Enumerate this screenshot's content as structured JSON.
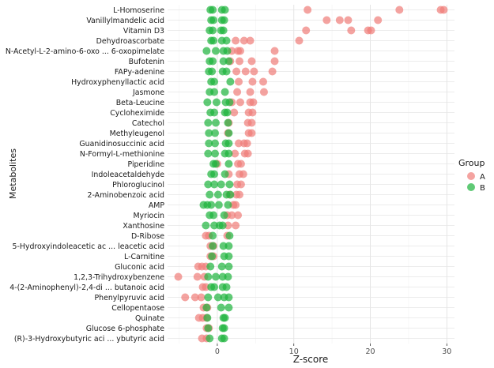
{
  "chart_data": {
    "type": "scatter",
    "title": "",
    "xlabel": "Z-score",
    "ylabel": "Metabolites",
    "xlim": [
      -6.5,
      31.0
    ],
    "x_ticks": [
      0,
      10,
      20,
      30
    ],
    "grid": true,
    "legend": {
      "title": "Group",
      "position": "right",
      "entries": [
        {
          "label": "A",
          "color": "#F07C78"
        },
        {
          "label": "B",
          "color": "#1DB43C"
        }
      ]
    },
    "metabolites": [
      {
        "name": "L-Homoserine",
        "A": [
          11.8,
          23.8,
          29.2,
          29.6
        ],
        "B": [
          -0.9,
          -0.6,
          0.6,
          1.0
        ]
      },
      {
        "name": "Vanillylmandelic acid",
        "A": [
          14.3,
          16.0,
          17.1,
          21.0
        ],
        "B": [
          -0.8,
          -0.5,
          0.6,
          0.9
        ]
      },
      {
        "name": "Vitamin D3",
        "A": [
          11.6,
          17.5,
          19.7,
          20.1
        ],
        "B": [
          -1.0,
          -0.6,
          0.5,
          0.8
        ]
      },
      {
        "name": "Dehydroascorbate",
        "A": [
          2.4,
          3.5,
          4.3,
          10.7
        ],
        "B": [
          -0.8,
          -0.5,
          0.6,
          1.2
        ]
      },
      {
        "name": "N-Acetyl-L-2-amino-6-oxo ... 6-oxopimelate",
        "A": [
          1.9,
          2.7,
          3.0,
          7.5
        ],
        "B": [
          -1.4,
          -0.2,
          0.8,
          1.3
        ]
      },
      {
        "name": "Bufotenin",
        "A": [
          1.7,
          2.9,
          4.5,
          7.5
        ],
        "B": [
          -1.0,
          -0.6,
          0.8,
          1.5
        ]
      },
      {
        "name": "FAPy-adenine",
        "A": [
          2.5,
          3.7,
          4.8,
          7.2
        ],
        "B": [
          -1.1,
          -0.7,
          0.7,
          1.2
        ]
      },
      {
        "name": "Hydroxyphenyllactic acid",
        "A": [
          2.8,
          4.6,
          6.0
        ],
        "B": [
          -0.8,
          -0.4,
          1.7
        ]
      },
      {
        "name": "Jasmone",
        "A": [
          2.6,
          4.3,
          6.1
        ],
        "B": [
          -1.0,
          -0.4,
          1.0
        ]
      },
      {
        "name": "Beta-Leucine",
        "A": [
          1.9,
          3.0,
          4.3,
          4.7
        ],
        "B": [
          -1.3,
          -0.1,
          1.1,
          1.6
        ]
      },
      {
        "name": "Cycloheximide",
        "A": [
          2.2,
          4.1,
          4.6
        ],
        "B": [
          -0.9,
          -0.4,
          1.0,
          1.3
        ]
      },
      {
        "name": "Catechol",
        "A": [
          1.5,
          4.0,
          4.5
        ],
        "B": [
          -1.2,
          -0.2,
          1.4
        ]
      },
      {
        "name": "Methyleugenol",
        "A": [
          1.4,
          4.1,
          4.5
        ],
        "B": [
          -1.1,
          -0.3,
          1.5
        ]
      },
      {
        "name": "Guanidinosuccinic acid",
        "A": [
          2.8,
          3.5,
          3.9
        ],
        "B": [
          -1.1,
          -0.3,
          1.1,
          1.5
        ]
      },
      {
        "name": "N-Formyl-L-methionine",
        "A": [
          2.3,
          3.6,
          4.0
        ],
        "B": [
          -1.2,
          -0.3,
          1.0,
          1.5
        ]
      },
      {
        "name": "Piperidine",
        "A": [
          0.0,
          2.7,
          3.1
        ],
        "B": [
          -0.5,
          -0.2,
          1.5
        ]
      },
      {
        "name": "Indoleacetaldehyde",
        "A": [
          1.5,
          2.9,
          3.4
        ],
        "B": [
          -0.8,
          -0.4,
          1.0
        ]
      },
      {
        "name": "Phloroglucinol",
        "A": [
          2.6,
          3.1
        ],
        "B": [
          -1.2,
          -0.4,
          0.5,
          1.6
        ]
      },
      {
        "name": "2-Aminobenzoic acid",
        "A": [
          1.6,
          2.5,
          2.9
        ],
        "B": [
          -1.0,
          0.1,
          1.2,
          1.7
        ]
      },
      {
        "name": "AMP",
        "A": [
          2.1,
          2.4
        ],
        "B": [
          -1.8,
          -1.3,
          -0.8,
          0.2,
          1.4
        ]
      },
      {
        "name": "Myriocin",
        "A": [
          1.3,
          1.9,
          2.7
        ],
        "B": [
          -1.0,
          -0.5,
          0.9
        ]
      },
      {
        "name": "Xanthosine",
        "A": [
          1.4,
          2.4
        ],
        "B": [
          -1.5,
          -0.4,
          0.3,
          0.7
        ]
      },
      {
        "name": "D-Ribose",
        "A": [
          -1.5,
          -1.1,
          1.3
        ],
        "B": [
          -0.6,
          1.6
        ]
      },
      {
        "name": "5-Hydroxyindoleacetic ac ... leacetic acid",
        "A": [
          -0.9,
          -0.5
        ],
        "B": [
          -0.6,
          0.8,
          1.5
        ]
      },
      {
        "name": "L-Carnitine",
        "A": [
          -0.9,
          -0.5
        ],
        "B": [
          -0.7,
          0.9,
          1.5
        ]
      },
      {
        "name": "Gluconic acid",
        "A": [
          -2.5,
          -2.0,
          -1.5
        ],
        "B": [
          -0.9,
          0.6,
          1.5
        ]
      },
      {
        "name": "1,2,3-Trihydroxybenzene",
        "A": [
          -5.1,
          -2.6,
          -1.7
        ],
        "B": [
          -1.2,
          -0.2,
          0.7,
          1.4
        ]
      },
      {
        "name": "4-(2-Aminophenyl)-2,4-di ... butanoic acid",
        "A": [
          -1.9,
          -1.5
        ],
        "B": [
          -0.8,
          -0.4,
          0.7,
          1.2
        ]
      },
      {
        "name": "Phenylpyruvic acid",
        "A": [
          -4.2,
          -2.9,
          -2.1
        ],
        "B": [
          -1.2,
          0.1,
          0.9,
          1.5
        ]
      },
      {
        "name": "Cellopentaose",
        "A": [
          -1.8,
          -1.3
        ],
        "B": [
          -1.4,
          0.5,
          1.5
        ]
      },
      {
        "name": "Quinate",
        "A": [
          -2.4,
          -1.9,
          -1.4
        ],
        "B": [
          -1.3,
          0.8,
          1.0
        ]
      },
      {
        "name": "Glucose 6-phosphate",
        "A": [
          -1.4,
          -1.1
        ],
        "B": [
          -1.2,
          0.7,
          0.9
        ]
      },
      {
        "name": "(R)-3-Hydroxybutyric aci ... ybutyric acid",
        "A": [
          -2.0,
          -1.4
        ],
        "B": [
          -1.0,
          0.6,
          0.9
        ]
      }
    ]
  }
}
